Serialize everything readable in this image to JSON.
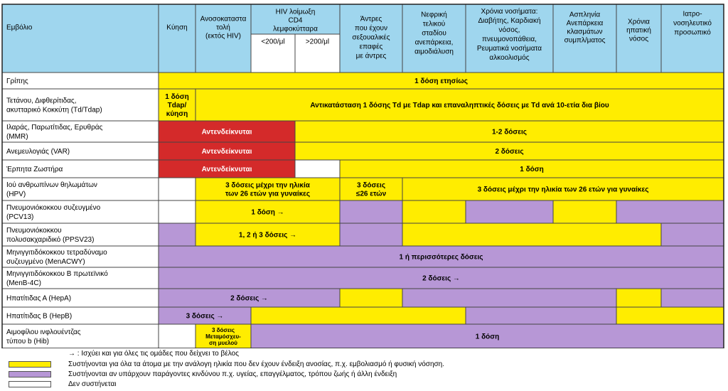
{
  "colors": {
    "header": "#9fd6ee",
    "yellow": "#ffed00",
    "purple": "#b797d6",
    "red": "#d42a2a",
    "white": "#ffffff",
    "grid": "#444444"
  },
  "header": {
    "vaccine": "Εμβόλιο",
    "pregnancy": "Κύηση",
    "immuno": [
      "Ανοσοκαταστα",
      "τολή",
      "(εκτός HIV)"
    ],
    "hiv": [
      "HIV λοίμωξη",
      "CD4",
      "λεμφοκύτταρα"
    ],
    "hiv_low": "<200/μl",
    "hiv_high": ">200/μl",
    "msm": [
      "Άντρες",
      "που έχουν",
      "σεξουαλικές",
      "επαφές",
      "με άντρες"
    ],
    "renal": [
      "Νεφρική",
      "τελικού",
      "σταδίου",
      "ανεπάρκεια,",
      "αιμοδιάλυση"
    ],
    "chronic": [
      "Χρόνια νοσήματα:",
      "Διαβήτης, Καρδιακή",
      "νόσος,",
      "πνευμονοπάθεια,",
      "Ρευματικά νοσήματα",
      "αλκοολισμός"
    ],
    "asplenia": [
      "Ασπληνία",
      "Ανεπάρκεια",
      "κλασμάτων",
      "συμπλ/ματος"
    ],
    "liver": [
      "Χρόνια",
      "ηπατική",
      "νόσος"
    ],
    "hcw": [
      "Ιατρο-",
      "νοσηλευτικό",
      "προσωπικό"
    ]
  },
  "rows": [
    {
      "label": [
        "Γρίπης"
      ],
      "cells": [
        {
          "text": "1 δόση ετησίως"
        }
      ]
    },
    {
      "label": [
        "Τετάνου, Διφθερίτιδας,",
        "ακυτταρικό Κοκκύτη (Td/Tdap)"
      ],
      "cells": [
        {
          "text": [
            "1 δόση",
            "Tdap/",
            "κύηση"
          ]
        },
        {
          "text": "Αντικατάσταση 1 δόσης Td με Tdap και επαναληπτικές δόσεις με Td ανά 10-ετία δια βίου"
        }
      ]
    },
    {
      "label": [
        "Ιλαράς, Παρωτίτιδας, Ερυθράς",
        "(MMR)"
      ],
      "cells": [
        {
          "text": "Αντενδείκνυται"
        },
        {
          "text": "1-2 δόσεις"
        }
      ]
    },
    {
      "label": [
        "Ανεμευλογιάς (VAR)"
      ],
      "cells": [
        {
          "text": "Αντενδείκνυται"
        },
        {
          "text": "2 δόσεις"
        }
      ]
    },
    {
      "label": [
        "Έρπητα Ζωστήρα"
      ],
      "cells": [
        {
          "text": "Αντενδείκνυται"
        },
        {
          "text": ""
        },
        {
          "text": "1 δόση"
        }
      ]
    },
    {
      "label": [
        "Ιού ανθρωπίνων θηλωμάτων",
        "(HPV)"
      ],
      "cells": [
        {
          "text": ""
        },
        {
          "text": [
            "3 δόσεις μέχρι την ηλικία",
            "των 26 ετών για γυναίκες"
          ]
        },
        {
          "text": [
            "3 δόσεις",
            "≤26 ετών"
          ]
        },
        {
          "text": "3 δόσεις μέχρι την ηλικία των 26 ετών για γυναίκες"
        }
      ]
    },
    {
      "label": [
        "Πνευμονιόκοκκου συζευγμένο",
        "(PCV13)"
      ],
      "cells": [
        {
          "text": ""
        },
        {
          "text": "1 δόση →"
        },
        {
          "text": ""
        },
        {
          "text": ""
        },
        {
          "text": ""
        },
        {
          "text": ""
        },
        {
          "text": ""
        }
      ]
    },
    {
      "label": [
        "Πνευμονιόκοκκου",
        "πολυσακχαριδικό (PPSV23)"
      ],
      "cells": [
        {
          "text": ""
        },
        {
          "text": "1, 2 ή 3 δόσεις →"
        },
        {
          "text": ""
        },
        {
          "text": ""
        },
        {
          "text": ""
        }
      ]
    },
    {
      "label": [
        "Μηνιγγιτιδόκοκκου τετραδύναμο",
        "συζευγμένο (MenACWY)"
      ],
      "cells": [
        {
          "text": "1 ή περισσότερες δόσεις"
        }
      ]
    },
    {
      "label": [
        "Μηνιγγιτιδόκοκκου Β πρωτεϊνικό",
        "(MenB-4C)"
      ],
      "cells": [
        {
          "text": "2 δόσεις →"
        }
      ]
    },
    {
      "label": [
        "Ηπατίτιδας Α (HepA)"
      ],
      "cells": [
        {
          "text": "2 δόσεις →"
        },
        {
          "text": ""
        },
        {
          "text": ""
        },
        {
          "text": ""
        },
        {
          "text": ""
        }
      ]
    },
    {
      "label": [
        "Ηπατίτιδας Β (HepB)"
      ],
      "cells": [
        {
          "text": "3 δόσεις →"
        },
        {
          "text": ""
        },
        {
          "text": ""
        },
        {
          "text": ""
        },
        {
          "text": ""
        }
      ]
    },
    {
      "label": [
        "Αιμοφίλου ινφλουέντζας",
        "τύπου b (Hib)"
      ],
      "cells": [
        {
          "text": ""
        },
        {
          "text": [
            "3 δόσεις",
            "Μεταμόσχευ-",
            "ση μυελού"
          ]
        },
        {
          "text": "1 δόση"
        }
      ]
    }
  ],
  "legend": {
    "arrow": "→ : Ισχύει και για όλες τις ομάδες που δείχνει το βέλος",
    "yellow": "Συστήνονται για όλα τα άτομα με την ανάλογη ηλικία που δεν έχουν ένδειξη ανοσίας, π.χ. εμβολιασμό ή φυσική νόσηση.",
    "purple": "Συστήνονται αν υπάρχουν παράγοντες κινδύνου π.χ. υγείας, επαγγέλματος, τρόπου ζωής ή άλλη ένδειξη",
    "white": "Δεν συστήνεται"
  }
}
